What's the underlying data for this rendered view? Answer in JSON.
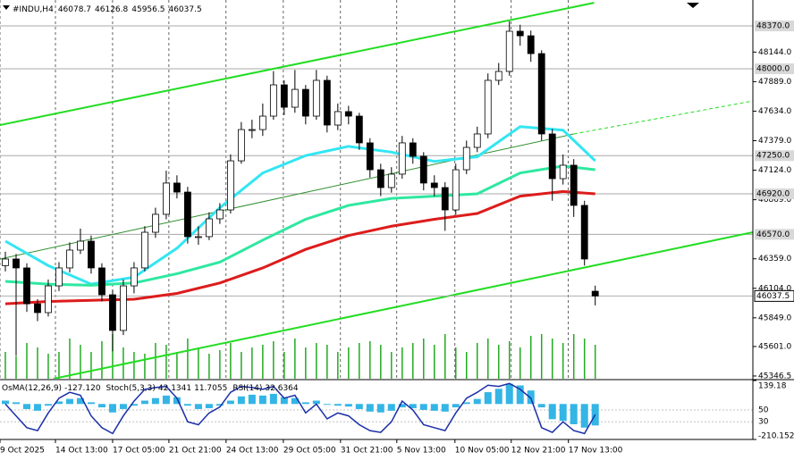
{
  "chart_data": {
    "type": "candlestick",
    "symbol": "#INDU,H4",
    "candles": [
      [
        46300,
        46420,
        46250,
        46357
      ],
      [
        46357,
        46400,
        45520,
        46280
      ],
      [
        46280,
        46320,
        45900,
        45970
      ],
      [
        45970,
        46010,
        45820,
        45894
      ],
      [
        45894,
        46180,
        45860,
        46125
      ],
      [
        46125,
        46330,
        46080,
        46280
      ],
      [
        46280,
        46500,
        46240,
        46434
      ],
      [
        46434,
        46620,
        46400,
        46511
      ],
      [
        46511,
        46560,
        46230,
        46280
      ],
      [
        46280,
        46320,
        45990,
        46048
      ],
      [
        46048,
        46090,
        45560,
        45740
      ],
      [
        45740,
        46180,
        45700,
        46125
      ],
      [
        46125,
        46330,
        46060,
        46280
      ],
      [
        46280,
        46640,
        46250,
        46588
      ],
      [
        46588,
        46800,
        46540,
        46743
      ],
      [
        46743,
        47120,
        46700,
        47013
      ],
      [
        47013,
        47080,
        46880,
        46935
      ],
      [
        46935,
        46980,
        46490,
        46550
      ],
      [
        46550,
        46640,
        46480,
        46550
      ],
      [
        46550,
        46760,
        46520,
        46704
      ],
      [
        46704,
        46840,
        46660,
        46781
      ],
      [
        46781,
        47260,
        46750,
        47205
      ],
      [
        47205,
        47540,
        47180,
        47475
      ],
      [
        47475,
        47560,
        47400,
        47475
      ],
      [
        47475,
        47700,
        47420,
        47591
      ],
      [
        47591,
        47980,
        47560,
        47861
      ],
      [
        47861,
        47900,
        47600,
        47668
      ],
      [
        47668,
        47990,
        47620,
        47822
      ],
      [
        47822,
        47860,
        47520,
        47591
      ],
      [
        47591,
        47990,
        47560,
        47900
      ],
      [
        47900,
        47940,
        47450,
        47514
      ],
      [
        47514,
        47700,
        47470,
        47630
      ],
      [
        47630,
        47680,
        47520,
        47591
      ],
      [
        47591,
        47620,
        47300,
        47360
      ],
      [
        47360,
        47400,
        47060,
        47128
      ],
      [
        47128,
        47180,
        46900,
        46974
      ],
      [
        46974,
        47150,
        46930,
        47090
      ],
      [
        47090,
        47420,
        47050,
        47360
      ],
      [
        47360,
        47400,
        47180,
        47244
      ],
      [
        47244,
        47280,
        46950,
        47013
      ],
      [
        47013,
        47080,
        46900,
        46974
      ],
      [
        46974,
        47020,
        46600,
        46781
      ],
      [
        46781,
        47180,
        46740,
        47128
      ],
      [
        47128,
        47380,
        47090,
        47321
      ],
      [
        47321,
        47500,
        47280,
        47437
      ],
      [
        47437,
        47960,
        47400,
        47900
      ],
      [
        47900,
        48050,
        47860,
        47977
      ],
      [
        47977,
        48410,
        47940,
        48324
      ],
      [
        48324,
        48380,
        48200,
        48285
      ],
      [
        48285,
        48330,
        48060,
        48131
      ],
      [
        48131,
        48160,
        47380,
        47437
      ],
      [
        47437,
        47480,
        46860,
        47051
      ],
      [
        47051,
        47260,
        47000,
        47167
      ],
      [
        47167,
        47220,
        46720,
        46820
      ],
      [
        46820,
        46860,
        46300,
        46357
      ],
      [
        46078.7,
        46126.8,
        45956.5,
        46037.5
      ]
    ],
    "up_color": "#ffffff",
    "down_color": "#000000",
    "xlim": [
      -0.5,
      69.7
    ],
    "xticks": [
      {
        "value": -0.5,
        "label": "9 Oct 2025"
      },
      {
        "value": 4.67,
        "label": "14 Oct 13:00"
      },
      {
        "value": 10,
        "label": "17 Oct 05:00"
      },
      {
        "value": 15.25,
        "label": "21 Oct 21:00"
      },
      {
        "value": 20.58,
        "label": "24 Oct 13:00"
      },
      {
        "value": 25.92,
        "label": "29 Oct 05:00"
      },
      {
        "value": 31.25,
        "label": "31 Oct 21:00"
      },
      {
        "value": 36.5,
        "label": "5 Nov 13:00"
      },
      {
        "value": 41.92,
        "label": "10 Nov 05:00"
      },
      {
        "value": 47.17,
        "label": "12 Nov 21:00"
      },
      {
        "value": 52.5,
        "label": "17 Nov 13:00"
      }
    ],
    "ylim": [
      45323,
      48594
    ],
    "yticks": [
      {
        "value": 48144,
        "label": "48144.0"
      },
      {
        "value": 47889,
        "label": "47889.0"
      },
      {
        "value": 47634,
        "label": "47634.0"
      },
      {
        "value": 47379,
        "label": "47379.0"
      },
      {
        "value": 47124,
        "label": "47124.0"
      },
      {
        "value": 46869,
        "label": "46869.0"
      },
      {
        "value": 46359,
        "label": "46359.0"
      },
      {
        "value": 46104,
        "label": "46104.0"
      },
      {
        "value": 45849,
        "label": "45849.0"
      },
      {
        "value": 45601,
        "label": "45601.0"
      },
      45346.5
    ],
    "levels": [
      {
        "value": 48370,
        "label": "48370.0"
      },
      {
        "value": 48000,
        "label": "48000.0"
      },
      {
        "value": 47250,
        "label": "47250.0"
      },
      {
        "value": 46920,
        "label": "46920.0"
      },
      {
        "value": 46570,
        "label": "46570.0"
      }
    ],
    "level_color": "#a8a8a8",
    "moving_averages": [
      {
        "color": "#33e6f2",
        "x": [
          0,
          4,
          8,
          12,
          16,
          20,
          24,
          28,
          32,
          36,
          40,
          44,
          48,
          52,
          55
        ],
        "values": [
          46511,
          46300,
          46140,
          46200,
          46450,
          46800,
          47100,
          47250,
          47330,
          47280,
          47200,
          47240,
          47500,
          47470,
          47205
        ]
      },
      {
        "color": "#2ee8a0",
        "x": [
          0,
          4,
          8,
          12,
          16,
          20,
          24,
          28,
          32,
          36,
          40,
          44,
          48,
          52,
          55
        ],
        "values": [
          46164,
          46140,
          46130,
          46150,
          46230,
          46330,
          46520,
          46700,
          46820,
          46880,
          46900,
          46920,
          47100,
          47160,
          47128
        ]
      },
      {
        "color": "#dd1c1c",
        "x": [
          0,
          4,
          8,
          12,
          16,
          20,
          24,
          28,
          32,
          36,
          40,
          44,
          48,
          52,
          55
        ],
        "values": [
          45970,
          45990,
          46000,
          46010,
          46060,
          46150,
          46280,
          46440,
          46560,
          46640,
          46700,
          46750,
          46900,
          46940,
          46920
        ]
      }
    ],
    "trendlines": [
      {
        "color": "#22dd22",
        "width": 2,
        "dashed": false,
        "x": [
          -0.5,
          54.9
        ],
        "values": [
          47514,
          48570
        ]
      },
      {
        "color": "#2f8f2f",
        "width": 1,
        "dashed": false,
        "x": [
          -0.5,
          53
        ],
        "values": [
          46357,
          47437
        ]
      },
      {
        "color": "#22dd22",
        "width": 1,
        "dashed": true,
        "x": [
          53,
          69.7
        ],
        "values": [
          47437,
          47722
        ]
      },
      {
        "color": "#22dd22",
        "width": 2,
        "dashed": false,
        "x": [
          4.5,
          69.7
        ],
        "values": [
          45323,
          46588
        ]
      }
    ],
    "volume": {
      "color": "#22aa22",
      "values": [
        30,
        25,
        40,
        35,
        28,
        30,
        45,
        38,
        30,
        42,
        50,
        35,
        30,
        28,
        40,
        38,
        30,
        45,
        35,
        28,
        32,
        40,
        30,
        35,
        38,
        42,
        30,
        45,
        35,
        40,
        38,
        30,
        35,
        40,
        42,
        38,
        30,
        35,
        40,
        45,
        38,
        50,
        35,
        30,
        40,
        45,
        38,
        42,
        35,
        48,
        50,
        45,
        40,
        50,
        45,
        38
      ]
    },
    "subwindow": {
      "ylim": [
        -210.152,
        139.18
      ],
      "yticks": [
        139.18,
        -210.152
      ],
      "y2lim": [
        0,
        100
      ],
      "y2ticks": [
        50,
        30
      ],
      "osma": {
        "name": "OsMA(12,26,9)",
        "color": "#33b5e5",
        "values": [
          20,
          10,
          -30,
          -40,
          -10,
          15,
          30,
          35,
          10,
          -20,
          -50,
          -30,
          -10,
          20,
          35,
          50,
          40,
          -10,
          -30,
          -25,
          -10,
          20,
          45,
          55,
          50,
          60,
          40,
          35,
          10,
          20,
          -5,
          -10,
          -15,
          -30,
          -45,
          -50,
          -40,
          -20,
          -25,
          -35,
          -40,
          -45,
          -20,
          10,
          30,
          70,
          90,
          120,
          110,
          80,
          -20,
          -90,
          -100,
          -120,
          -140,
          -127.12
        ],
        "current_label": "-127.120"
      },
      "stoch": {
        "name": "Stoch(5,3,3)",
        "color": "#1a2ea8",
        "values": [
          60,
          40,
          20,
          15,
          45,
          70,
          80,
          75,
          40,
          20,
          10,
          40,
          65,
          85,
          88,
          90,
          70,
          30,
          25,
          45,
          55,
          80,
          90,
          88,
          85,
          90,
          70,
          75,
          45,
          60,
          35,
          45,
          40,
          25,
          15,
          12,
          30,
          65,
          50,
          25,
          20,
          15,
          45,
          70,
          80,
          92,
          90,
          95,
          85,
          70,
          20,
          12,
          30,
          15,
          10,
          42.1341
        ],
        "signal": 11.7055
      },
      "rsi": {
        "name": "RSI(14)",
        "value": 32.6364
      }
    }
  }
}
